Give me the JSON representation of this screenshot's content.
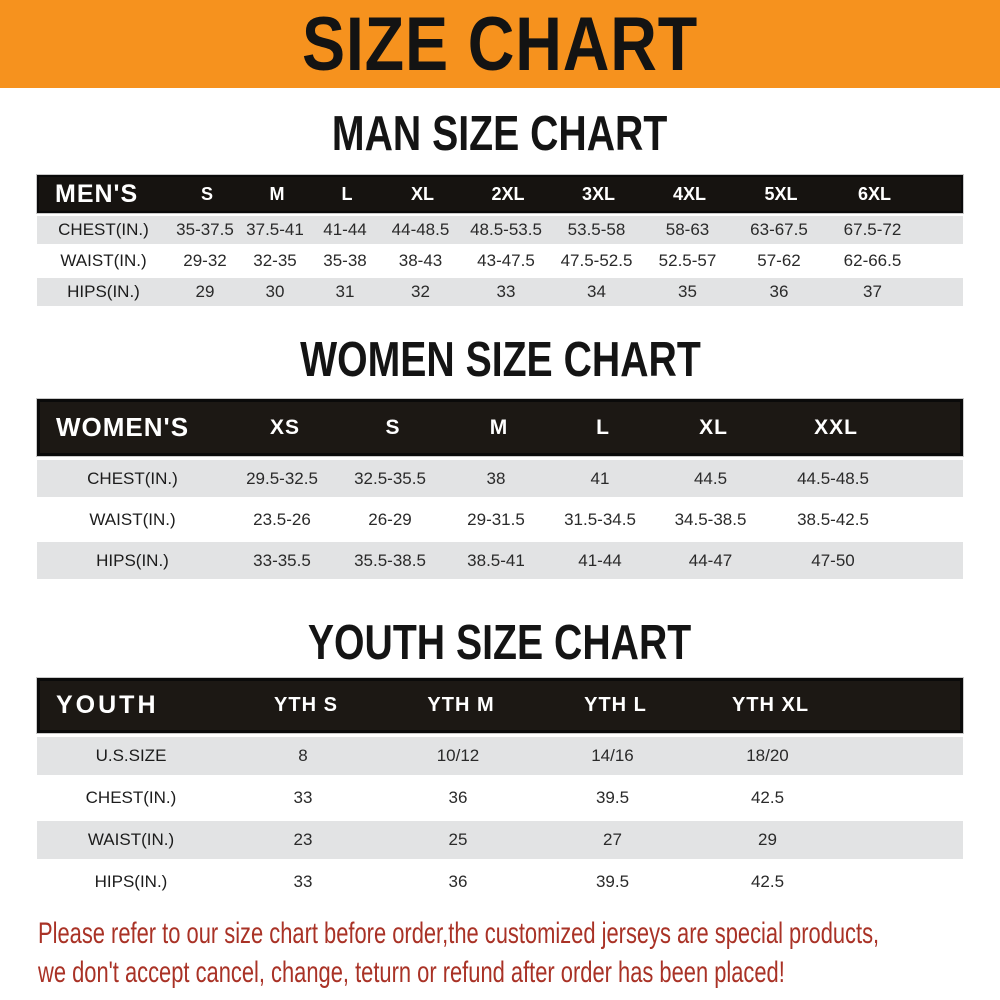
{
  "banner": {
    "title": "SIZE CHART"
  },
  "colors": {
    "orange": "#F6921E",
    "header_black": "#1C1814",
    "gray_band": "#E2E3E4",
    "notice_red": "#A93226"
  },
  "sections": [
    {
      "id": "man",
      "title": "MAN SIZE CHART",
      "header_label": "MEN'S",
      "columns": [
        "S",
        "M",
        "L",
        "XL",
        "2XL",
        "3XL",
        "4XL",
        "5XL",
        "6XL"
      ],
      "rows": [
        {
          "label": "CHEST(IN.)",
          "values": [
            "35-37.5",
            "37.5-41",
            "41-44",
            "44-48.5",
            "48.5-53.5",
            "53.5-58",
            "58-63",
            "63-67.5",
            "67.5-72"
          ]
        },
        {
          "label": "WAIST(IN.)",
          "values": [
            "29-32",
            "32-35",
            "35-38",
            "38-43",
            "43-47.5",
            "47.5-52.5",
            "52.5-57",
            "57-62",
            "62-66.5"
          ]
        },
        {
          "label": "HIPS(IN.)",
          "values": [
            "29",
            "30",
            "31",
            "32",
            "33",
            "34",
            "35",
            "36",
            "37"
          ]
        }
      ]
    },
    {
      "id": "women",
      "title": "WOMEN SIZE CHART",
      "header_label": "WOMEN'S",
      "columns": [
        "XS",
        "S",
        "M",
        "L",
        "XL",
        "XXL"
      ],
      "rows": [
        {
          "label": "CHEST(IN.)",
          "values": [
            "29.5-32.5",
            "32.5-35.5",
            "38",
            "41",
            "44.5",
            "44.5-48.5"
          ]
        },
        {
          "label": "WAIST(IN.)",
          "values": [
            "23.5-26",
            "26-29",
            "29-31.5",
            "31.5-34.5",
            "34.5-38.5",
            "38.5-42.5"
          ]
        },
        {
          "label": "HIPS(IN.)",
          "values": [
            "33-35.5",
            "35.5-38.5",
            "38.5-41",
            "41-44",
            "44-47",
            "47-50"
          ]
        }
      ]
    },
    {
      "id": "youth",
      "title": "YOUTH SIZE CHART",
      "header_label": "YOUTH",
      "columns": [
        "YTH S",
        "YTH M",
        "YTH L",
        "YTH XL"
      ],
      "rows": [
        {
          "label": "U.S.SIZE",
          "values": [
            "8",
            "10/12",
            "14/16",
            "18/20"
          ]
        },
        {
          "label": "CHEST(IN.)",
          "values": [
            "33",
            "36",
            "39.5",
            "42.5"
          ]
        },
        {
          "label": "WAIST(IN.)",
          "values": [
            "23",
            "25",
            "27",
            "29"
          ]
        },
        {
          "label": "HIPS(IN.)",
          "values": [
            "33",
            "36",
            "39.5",
            "42.5"
          ]
        }
      ]
    }
  ],
  "notice": {
    "line1": "Please refer to our size chart before order,the customized jerseys are special products,",
    "line2": "we don't accept cancel, change, teturn or refund after order has been placed!"
  }
}
